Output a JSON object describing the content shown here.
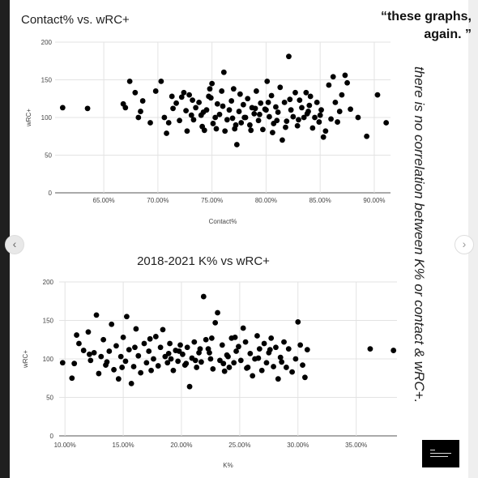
{
  "quote": {
    "line1": "“these graphs,",
    "line2": "again. ”"
  },
  "side_text": "there is no correlation between K% or contact & wRC+.",
  "nav": {
    "prev_icon": "chevron-left-icon",
    "next_icon": "chevron-right-icon"
  },
  "thumbnail_icon": "text-lines-icon",
  "chart_data": [
    {
      "type": "scatter",
      "title": "Contact% vs. wRC+",
      "xlabel": "Contact%",
      "ylabel": "wRC+",
      "xlim": [
        60.5,
        91.5
      ],
      "ylim": [
        0,
        200
      ],
      "xticks": [
        65,
        70,
        75,
        80,
        85,
        90
      ],
      "xtick_labels": [
        "65.00%",
        "70.00%",
        "75.00%",
        "80.00%",
        "85.00%",
        "90.00%"
      ],
      "yticks": [
        0,
        50,
        100,
        150,
        200
      ],
      "ytick_labels": [
        "0",
        "50",
        "100",
        "150",
        "200"
      ],
      "grid": true,
      "points": [
        [
          61.2,
          113
        ],
        [
          63.5,
          112
        ],
        [
          66.8,
          118
        ],
        [
          67.0,
          113
        ],
        [
          67.4,
          148
        ],
        [
          67.9,
          133
        ],
        [
          68.2,
          100
        ],
        [
          68.6,
          122
        ],
        [
          68.4,
          108
        ],
        [
          69.3,
          93
        ],
        [
          69.8,
          135
        ],
        [
          70.3,
          148
        ],
        [
          70.6,
          100
        ],
        [
          70.8,
          79
        ],
        [
          71.0,
          93
        ],
        [
          71.3,
          128
        ],
        [
          71.4,
          112
        ],
        [
          71.7,
          119
        ],
        [
          72.0,
          96
        ],
        [
          72.2,
          127
        ],
        [
          72.4,
          133
        ],
        [
          72.7,
          82
        ],
        [
          72.9,
          130
        ],
        [
          73.1,
          103
        ],
        [
          73.3,
          97
        ],
        [
          73.5,
          113
        ],
        [
          73.8,
          120
        ],
        [
          74.0,
          103
        ],
        [
          74.1,
          88
        ],
        [
          74.3,
          83
        ],
        [
          74.5,
          110
        ],
        [
          74.7,
          128
        ],
        [
          74.8,
          138
        ],
        [
          75.0,
          145
        ],
        [
          75.1,
          92
        ],
        [
          75.3,
          100
        ],
        [
          75.5,
          118
        ],
        [
          75.7,
          104
        ],
        [
          75.9,
          135
        ],
        [
          76.1,
          160
        ],
        [
          76.2,
          82
        ],
        [
          76.4,
          97
        ],
        [
          76.6,
          110
        ],
        [
          76.8,
          122
        ],
        [
          77.0,
          138
        ],
        [
          77.1,
          85
        ],
        [
          77.3,
          64
        ],
        [
          77.5,
          108
        ],
        [
          77.7,
          93
        ],
        [
          77.9,
          117
        ],
        [
          78.1,
          100
        ],
        [
          78.3,
          125
        ],
        [
          78.5,
          90
        ],
        [
          78.7,
          113
        ],
        [
          78.9,
          105
        ],
        [
          79.1,
          135
        ],
        [
          79.3,
          96
        ],
        [
          79.5,
          119
        ],
        [
          79.7,
          84
        ],
        [
          79.9,
          111
        ],
        [
          80.1,
          148
        ],
        [
          80.3,
          101
        ],
        [
          80.5,
          129
        ],
        [
          80.7,
          92
        ],
        [
          80.9,
          114
        ],
        [
          81.1,
          107
        ],
        [
          81.3,
          140
        ],
        [
          81.5,
          70
        ],
        [
          81.7,
          120
        ],
        [
          81.9,
          95
        ],
        [
          82.1,
          181
        ],
        [
          82.3,
          110
        ],
        [
          82.5,
          101
        ],
        [
          82.7,
          133
        ],
        [
          82.9,
          89
        ],
        [
          83.1,
          123
        ],
        [
          83.3,
          113
        ],
        [
          83.5,
          100
        ],
        [
          83.7,
          133
        ],
        [
          83.9,
          108
        ],
        [
          84.1,
          128
        ],
        [
          84.3,
          86
        ],
        [
          84.5,
          100
        ],
        [
          84.7,
          120
        ],
        [
          84.9,
          94
        ],
        [
          85.1,
          110
        ],
        [
          85.3,
          74
        ],
        [
          85.5,
          82
        ],
        [
          85.8,
          143
        ],
        [
          86.0,
          98
        ],
        [
          86.2,
          154
        ],
        [
          86.4,
          120
        ],
        [
          86.6,
          94
        ],
        [
          86.8,
          108
        ],
        [
          87.0,
          130
        ],
        [
          87.3,
          156
        ],
        [
          87.5,
          146
        ],
        [
          87.8,
          111
        ],
        [
          88.5,
          100
        ],
        [
          89.3,
          75
        ],
        [
          90.3,
          130
        ],
        [
          91.1,
          93
        ],
        [
          76.0,
          115
        ],
        [
          78.0,
          100
        ],
        [
          80.2,
          120
        ],
        [
          74.2,
          107
        ],
        [
          81.8,
          87
        ],
        [
          79.4,
          104
        ],
        [
          77.6,
          131
        ],
        [
          83.0,
          97
        ],
        [
          75.4,
          85
        ],
        [
          72.6,
          109
        ],
        [
          84.0,
          116
        ],
        [
          80.6,
          80
        ],
        [
          82.2,
          124
        ],
        [
          76.9,
          99
        ],
        [
          73.2,
          123
        ],
        [
          79.0,
          112
        ],
        [
          85.0,
          103
        ],
        [
          78.6,
          83
        ],
        [
          81.0,
          96
        ],
        [
          74.9,
          126
        ],
        [
          77.2,
          90
        ],
        [
          83.8,
          105
        ],
        [
          80.0,
          110
        ]
      ]
    },
    {
      "type": "scatter",
      "title": "2018-2021 K% vs wRC+",
      "xlabel": "K%",
      "ylabel": "wRC+",
      "xlim": [
        9.5,
        38.5
      ],
      "ylim": [
        0,
        200
      ],
      "xticks": [
        10,
        15,
        20,
        25,
        30,
        35
      ],
      "xtick_labels": [
        "10.00%",
        "15.00%",
        "20.00%",
        "25.00%",
        "30.00%",
        "35.00%"
      ],
      "yticks": [
        0,
        50,
        100,
        150,
        200
      ],
      "ytick_labels": [
        "0",
        "50",
        "100",
        "150",
        "200"
      ],
      "grid": true,
      "points": [
        [
          9.8,
          95
        ],
        [
          10.6,
          75
        ],
        [
          10.8,
          94
        ],
        [
          11.0,
          131
        ],
        [
          11.2,
          120
        ],
        [
          11.6,
          111
        ],
        [
          12.0,
          135
        ],
        [
          12.2,
          98
        ],
        [
          12.5,
          108
        ],
        [
          12.7,
          157
        ],
        [
          12.9,
          81
        ],
        [
          13.1,
          103
        ],
        [
          13.3,
          125
        ],
        [
          13.5,
          92
        ],
        [
          13.8,
          110
        ],
        [
          14.0,
          145
        ],
        [
          14.2,
          86
        ],
        [
          14.4,
          117
        ],
        [
          14.6,
          74
        ],
        [
          14.8,
          103
        ],
        [
          15.0,
          128
        ],
        [
          15.2,
          97
        ],
        [
          15.3,
          155
        ],
        [
          15.5,
          112
        ],
        [
          15.7,
          68
        ],
        [
          15.9,
          90
        ],
        [
          16.1,
          139
        ],
        [
          16.3,
          104
        ],
        [
          16.5,
          82
        ],
        [
          16.8,
          120
        ],
        [
          17.0,
          95
        ],
        [
          17.2,
          110
        ],
        [
          17.4,
          85
        ],
        [
          17.6,
          100
        ],
        [
          17.8,
          129
        ],
        [
          18.0,
          91
        ],
        [
          18.2,
          115
        ],
        [
          18.4,
          138
        ],
        [
          18.6,
          103
        ],
        [
          18.8,
          95
        ],
        [
          19.0,
          120
        ],
        [
          19.3,
          85
        ],
        [
          19.5,
          111
        ],
        [
          19.7,
          97
        ],
        [
          19.9,
          118
        ],
        [
          20.1,
          106
        ],
        [
          20.3,
          92
        ],
        [
          20.5,
          115
        ],
        [
          20.7,
          64
        ],
        [
          20.9,
          101
        ],
        [
          21.1,
          122
        ],
        [
          21.3,
          89
        ],
        [
          21.5,
          108
        ],
        [
          21.7,
          96
        ],
        [
          21.9,
          181
        ],
        [
          22.1,
          125
        ],
        [
          22.3,
          113
        ],
        [
          22.5,
          100
        ],
        [
          22.7,
          87
        ],
        [
          22.9,
          147
        ],
        [
          23.1,
          160
        ],
        [
          23.3,
          98
        ],
        [
          23.5,
          118
        ],
        [
          23.7,
          84
        ],
        [
          23.9,
          105
        ],
        [
          24.1,
          89
        ],
        [
          24.3,
          127
        ],
        [
          24.5,
          95
        ],
        [
          24.7,
          110
        ],
        [
          24.9,
          116
        ],
        [
          25.1,
          98
        ],
        [
          25.3,
          140
        ],
        [
          25.5,
          122
        ],
        [
          25.7,
          89
        ],
        [
          25.9,
          107
        ],
        [
          26.1,
          78
        ],
        [
          26.3,
          100
        ],
        [
          26.5,
          130
        ],
        [
          26.7,
          113
        ],
        [
          26.9,
          85
        ],
        [
          27.1,
          120
        ],
        [
          27.3,
          95
        ],
        [
          27.5,
          108
        ],
        [
          27.7,
          127
        ],
        [
          27.9,
          90
        ],
        [
          28.1,
          115
        ],
        [
          28.3,
          74
        ],
        [
          28.5,
          102
        ],
        [
          28.8,
          122
        ],
        [
          29.0,
          89
        ],
        [
          29.2,
          113
        ],
        [
          29.5,
          83
        ],
        [
          29.8,
          100
        ],
        [
          30.0,
          148
        ],
        [
          30.2,
          118
        ],
        [
          30.4,
          92
        ],
        [
          30.6,
          76
        ],
        [
          30.8,
          112
        ],
        [
          36.2,
          113
        ],
        [
          38.2,
          111
        ],
        [
          12.1,
          106
        ],
        [
          13.6,
          96
        ],
        [
          16.0,
          115
        ],
        [
          17.3,
          126
        ],
        [
          19.1,
          100
        ],
        [
          21.6,
          113
        ],
        [
          22.6,
          127
        ],
        [
          23.6,
          94
        ],
        [
          24.0,
          103
        ],
        [
          25.6,
          88
        ],
        [
          26.6,
          101
        ],
        [
          27.6,
          112
        ],
        [
          19.8,
          110
        ],
        [
          21.2,
          98
        ],
        [
          22.4,
          108
        ],
        [
          24.6,
          128
        ],
        [
          20.4,
          94
        ],
        [
          18.9,
          107
        ],
        [
          14.9,
          89
        ],
        [
          28.6,
          96
        ]
      ]
    }
  ]
}
